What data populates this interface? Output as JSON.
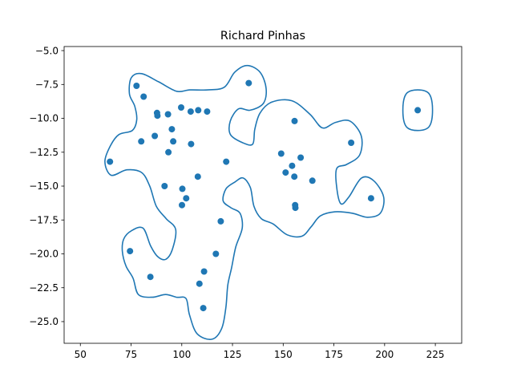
{
  "chart_data": {
    "type": "scatter",
    "title": "Richard Pinhas",
    "xlabel": "",
    "ylabel": "",
    "xlim": [
      42,
      238
    ],
    "ylim": [
      -26.6,
      -4.7
    ],
    "x_ticks": [
      50,
      75,
      100,
      125,
      150,
      175,
      200,
      225
    ],
    "x_tick_labels": [
      "50",
      "75",
      "100",
      "125",
      "150",
      "175",
      "200",
      "225"
    ],
    "y_ticks": [
      -5.0,
      -7.5,
      -10.0,
      -12.5,
      -15.0,
      -17.5,
      -20.0,
      -22.5,
      -25.0
    ],
    "y_tick_labels": [
      "−5.0",
      "−7.5",
      "−10.0",
      "−12.5",
      "−15.0",
      "−17.5",
      "−20.0",
      "−22.5",
      "−25.0"
    ],
    "grid": false,
    "series": [
      {
        "color": "#1f77b4",
        "points": [
          {
            "x": 77.7,
            "y": -7.6
          },
          {
            "x": 81.2,
            "y": -8.4
          },
          {
            "x": 87.8,
            "y": -9.6
          },
          {
            "x": 88.0,
            "y": -9.8
          },
          {
            "x": 93.2,
            "y": -9.7
          },
          {
            "x": 99.7,
            "y": -9.2
          },
          {
            "x": 104.4,
            "y": -9.5
          },
          {
            "x": 108.1,
            "y": -9.4
          },
          {
            "x": 112.5,
            "y": -9.5
          },
          {
            "x": 133.0,
            "y": -7.4
          },
          {
            "x": 64.6,
            "y": -13.2
          },
          {
            "x": 80.0,
            "y": -11.7
          },
          {
            "x": 86.7,
            "y": -11.3
          },
          {
            "x": 95.1,
            "y": -10.8
          },
          {
            "x": 95.8,
            "y": -11.7
          },
          {
            "x": 93.4,
            "y": -12.5
          },
          {
            "x": 104.6,
            "y": -11.9
          },
          {
            "x": 121.9,
            "y": -13.2
          },
          {
            "x": 107.9,
            "y": -14.3
          },
          {
            "x": 91.5,
            "y": -15.0
          },
          {
            "x": 100.3,
            "y": -15.2
          },
          {
            "x": 102.2,
            "y": -15.9
          },
          {
            "x": 100.1,
            "y": -16.4
          },
          {
            "x": 119.2,
            "y": -17.6
          },
          {
            "x": 155.6,
            "y": -10.2
          },
          {
            "x": 183.5,
            "y": -11.8
          },
          {
            "x": 149.0,
            "y": -12.6
          },
          {
            "x": 158.6,
            "y": -12.9
          },
          {
            "x": 154.4,
            "y": -13.5
          },
          {
            "x": 151.2,
            "y": -14.0
          },
          {
            "x": 155.5,
            "y": -14.3
          },
          {
            "x": 164.4,
            "y": -14.6
          },
          {
            "x": 193.3,
            "y": -15.9
          },
          {
            "x": 155.9,
            "y": -16.4
          },
          {
            "x": 156.0,
            "y": -16.6
          },
          {
            "x": 216.3,
            "y": -9.4
          },
          {
            "x": 74.5,
            "y": -19.8
          },
          {
            "x": 84.5,
            "y": -21.7
          },
          {
            "x": 111.0,
            "y": -21.3
          },
          {
            "x": 116.8,
            "y": -20.0
          },
          {
            "x": 108.7,
            "y": -22.2
          },
          {
            "x": 110.6,
            "y": -24.0
          }
        ]
      }
    ],
    "contours": [
      {
        "color": "#1f77b4",
        "points": [
          [
            64.9,
            -12.0
          ],
          [
            69.0,
            -11.2
          ],
          [
            75.6,
            -10.9
          ],
          [
            77.8,
            -10.1
          ],
          [
            76.8,
            -9.1
          ],
          [
            74.2,
            -8.2
          ],
          [
            75.1,
            -7.0
          ],
          [
            80.2,
            -6.7
          ],
          [
            88.5,
            -7.3
          ],
          [
            97.5,
            -8.0
          ],
          [
            104.0,
            -7.9
          ],
          [
            112.8,
            -7.9
          ],
          [
            121.0,
            -7.7
          ],
          [
            126.1,
            -6.6
          ],
          [
            132.2,
            -6.1
          ],
          [
            138.6,
            -6.6
          ],
          [
            141.6,
            -7.8
          ],
          [
            140.2,
            -8.9
          ],
          [
            133.7,
            -9.4
          ],
          [
            128.0,
            -9.3
          ],
          [
            123.9,
            -10.2
          ],
          [
            124.0,
            -11.2
          ],
          [
            130.1,
            -11.8
          ],
          [
            135.0,
            -11.9
          ],
          [
            136.0,
            -10.8
          ],
          [
            138.6,
            -9.6
          ],
          [
            144.4,
            -8.8
          ],
          [
            154.3,
            -8.7
          ],
          [
            163.2,
            -9.7
          ],
          [
            169.3,
            -10.7
          ],
          [
            175.8,
            -10.3
          ],
          [
            182.9,
            -10.2
          ],
          [
            188.5,
            -11.3
          ],
          [
            187.7,
            -12.7
          ],
          [
            181.3,
            -13.4
          ],
          [
            176.4,
            -13.7
          ],
          [
            176.3,
            -15.0
          ],
          [
            178.4,
            -16.3
          ],
          [
            182.4,
            -15.8
          ],
          [
            188.6,
            -14.4
          ],
          [
            194.6,
            -14.6
          ],
          [
            199.5,
            -15.8
          ],
          [
            197.9,
            -17.0
          ],
          [
            191.6,
            -17.3
          ],
          [
            184.0,
            -17.0
          ],
          [
            175.5,
            -16.9
          ],
          [
            168.3,
            -17.2
          ],
          [
            163.8,
            -18.0
          ],
          [
            159.2,
            -18.7
          ],
          [
            152.0,
            -18.6
          ],
          [
            145.1,
            -17.8
          ],
          [
            139.2,
            -17.4
          ],
          [
            135.6,
            -16.5
          ],
          [
            133.8,
            -15.1
          ],
          [
            130.2,
            -14.4
          ],
          [
            126.2,
            -14.7
          ],
          [
            121.8,
            -15.2
          ],
          [
            120.4,
            -16.1
          ],
          [
            124.3,
            -16.6
          ],
          [
            128.7,
            -17.0
          ],
          [
            129.8,
            -18.1
          ],
          [
            126.6,
            -19.5
          ],
          [
            124.6,
            -21.0
          ],
          [
            122.7,
            -22.3
          ],
          [
            121.7,
            -24.0
          ],
          [
            119.7,
            -25.5
          ],
          [
            114.9,
            -26.3
          ],
          [
            107.6,
            -25.9
          ],
          [
            103.8,
            -24.5
          ],
          [
            102.1,
            -23.3
          ],
          [
            97.4,
            -23.2
          ],
          [
            92.0,
            -23.0
          ],
          [
            85.4,
            -23.2
          ],
          [
            78.6,
            -23.0
          ],
          [
            76.0,
            -21.8
          ],
          [
            72.5,
            -20.9
          ],
          [
            70.7,
            -19.8
          ],
          [
            71.4,
            -18.9
          ],
          [
            75.1,
            -18.3
          ],
          [
            80.9,
            -18.1
          ],
          [
            84.6,
            -19.4
          ],
          [
            88.1,
            -20.2
          ],
          [
            92.1,
            -20.4
          ],
          [
            95.3,
            -19.7
          ],
          [
            97.0,
            -18.2
          ],
          [
            92.3,
            -17.4
          ],
          [
            87.5,
            -16.5
          ],
          [
            84.2,
            -15.0
          ],
          [
            80.2,
            -14.0
          ],
          [
            72.9,
            -13.8
          ],
          [
            65.2,
            -14.2
          ],
          [
            62.1,
            -13.2
          ],
          [
            64.9,
            -12.0
          ]
        ]
      },
      {
        "color": "#1f77b4",
        "points": [
          [
            216.3,
            -7.9
          ],
          [
            222.0,
            -8.2
          ],
          [
            223.6,
            -9.4
          ],
          [
            222.0,
            -10.6
          ],
          [
            216.3,
            -10.9
          ],
          [
            210.6,
            -10.6
          ],
          [
            209.0,
            -9.4
          ],
          [
            210.6,
            -8.2
          ],
          [
            216.3,
            -7.9
          ]
        ]
      }
    ]
  }
}
